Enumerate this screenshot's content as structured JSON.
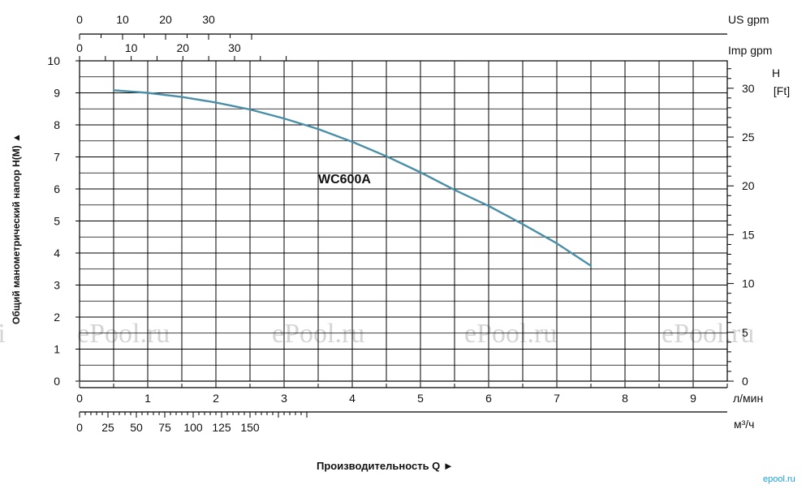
{
  "chart_data": {
    "type": "line",
    "series": [
      {
        "name": "WC600A",
        "x": [
          0.5,
          1.0,
          1.5,
          2.0,
          2.5,
          3.0,
          3.5,
          4.0,
          4.5,
          5.0,
          5.5,
          6.0,
          6.5,
          7.0,
          7.5
        ],
        "values": [
          9.08,
          9.0,
          8.87,
          8.7,
          8.48,
          8.2,
          7.87,
          7.47,
          7.02,
          6.52,
          5.97,
          5.47,
          4.9,
          4.3,
          3.6
        ]
      }
    ],
    "x_axes": {
      "l_min": {
        "unit": "л/мин",
        "range": [
          0,
          10
        ],
        "tick_labels": [
          "0",
          "1",
          "2",
          "3",
          "4",
          "5",
          "6",
          "7",
          "8",
          "9"
        ]
      },
      "m3_h": {
        "unit": "м³/ч",
        "range": [
          0,
          166.67
        ],
        "tick_labels": [
          "0",
          "25",
          "50",
          "75",
          "100",
          "125",
          "150"
        ]
      },
      "us_gpm": {
        "unit": "US  gpm",
        "tick_labels": [
          "0",
          "10",
          "20",
          "30"
        ]
      },
      "imp_gpm": {
        "unit": "Imp gpm",
        "tick_labels": [
          "0",
          "10",
          "20",
          "30"
        ]
      }
    },
    "y_axes": {
      "m": {
        "label": "Общий манометрический напор  H(M)  ▲",
        "range": [
          0,
          10
        ],
        "tick_labels": [
          "0",
          "1",
          "2",
          "3",
          "4",
          "5",
          "6",
          "7",
          "8",
          "9",
          "10"
        ]
      },
      "ft": {
        "unit_line1": "H",
        "unit_line2": "[Ft]",
        "tick_labels": [
          "0",
          "5",
          "10",
          "15",
          "20",
          "25",
          "30"
        ]
      }
    },
    "xlabel": "Производительность  Q   ►",
    "grid": true
  },
  "watermarks": [
    "ePool.ru",
    "ePool.ru",
    "ePool.ru",
    "ePool.ru"
  ],
  "corner_logo": "epool.ru",
  "colors": {
    "curve": "#4a8fa8",
    "grid": "#000000",
    "watermark": "#d4d4d4"
  }
}
